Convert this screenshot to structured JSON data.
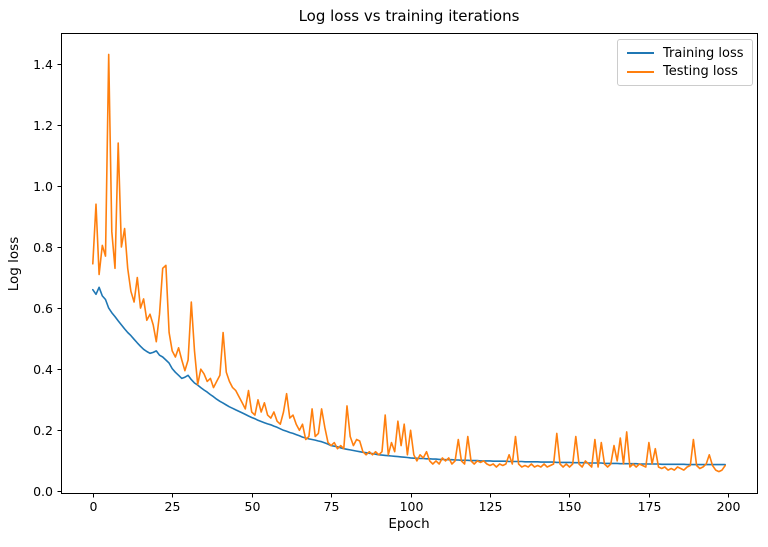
{
  "chart_data": {
    "type": "line",
    "title": "Log loss vs training iterations",
    "xlabel": "Epoch",
    "ylabel": "Log loss",
    "xlim": [
      -10,
      209
    ],
    "ylim": [
      -0.005,
      1.5
    ],
    "x_ticks": [
      0,
      25,
      50,
      75,
      100,
      125,
      150,
      175,
      200
    ],
    "y_ticks": [
      0.0,
      0.2,
      0.4,
      0.6,
      0.8,
      1.0,
      1.2,
      1.4
    ],
    "grid": false,
    "legend_position": "upper right",
    "x_start": 0,
    "x_step": 1,
    "series": [
      {
        "name": "Training loss",
        "color": "#1f77b4",
        "values": [
          0.66,
          0.645,
          0.668,
          0.64,
          0.628,
          0.6,
          0.585,
          0.572,
          0.558,
          0.545,
          0.532,
          0.52,
          0.51,
          0.498,
          0.486,
          0.475,
          0.465,
          0.458,
          0.452,
          0.455,
          0.46,
          0.446,
          0.44,
          0.43,
          0.42,
          0.402,
          0.39,
          0.38,
          0.37,
          0.374,
          0.38,
          0.366,
          0.355,
          0.348,
          0.34,
          0.332,
          0.325,
          0.317,
          0.31,
          0.302,
          0.295,
          0.289,
          0.283,
          0.277,
          0.272,
          0.267,
          0.262,
          0.257,
          0.252,
          0.247,
          0.242,
          0.238,
          0.233,
          0.229,
          0.225,
          0.221,
          0.218,
          0.214,
          0.21,
          0.205,
          0.2,
          0.197,
          0.193,
          0.19,
          0.186,
          0.182,
          0.178,
          0.175,
          0.172,
          0.17,
          0.168,
          0.165,
          0.163,
          0.159,
          0.155,
          0.15,
          0.148,
          0.146,
          0.143,
          0.14,
          0.138,
          0.136,
          0.134,
          0.132,
          0.13,
          0.128,
          0.127,
          0.125,
          0.124,
          0.122,
          0.12,
          0.119,
          0.118,
          0.117,
          0.116,
          0.115,
          0.114,
          0.113,
          0.112,
          0.111,
          0.11,
          0.109,
          0.109,
          0.108,
          0.108,
          0.107,
          0.107,
          0.106,
          0.106,
          0.105,
          0.105,
          0.104,
          0.104,
          0.104,
          0.103,
          0.103,
          0.102,
          0.102,
          0.102,
          0.101,
          0.101,
          0.101,
          0.1,
          0.1,
          0.1,
          0.1,
          0.099,
          0.099,
          0.099,
          0.099,
          0.099,
          0.098,
          0.098,
          0.098,
          0.098,
          0.098,
          0.097,
          0.097,
          0.097,
          0.097,
          0.097,
          0.096,
          0.096,
          0.096,
          0.096,
          0.096,
          0.095,
          0.095,
          0.095,
          0.095,
          0.095,
          0.094,
          0.094,
          0.094,
          0.094,
          0.094,
          0.093,
          0.093,
          0.093,
          0.093,
          0.093,
          0.092,
          0.092,
          0.092,
          0.092,
          0.092,
          0.091,
          0.091,
          0.091,
          0.091,
          0.091,
          0.091,
          0.09,
          0.09,
          0.09,
          0.09,
          0.09,
          0.09,
          0.09,
          0.089,
          0.089,
          0.089,
          0.089,
          0.089,
          0.089,
          0.089,
          0.089,
          0.088,
          0.088,
          0.088,
          0.088,
          0.088,
          0.088,
          0.088,
          0.088,
          0.088,
          0.088,
          0.088,
          0.088,
          0.088
        ]
      },
      {
        "name": "Testing loss",
        "color": "#ff7f0e",
        "values": [
          0.745,
          0.94,
          0.71,
          0.805,
          0.77,
          1.43,
          0.85,
          0.73,
          1.14,
          0.8,
          0.86,
          0.73,
          0.655,
          0.62,
          0.7,
          0.6,
          0.63,
          0.56,
          0.58,
          0.545,
          0.49,
          0.58,
          0.73,
          0.74,
          0.52,
          0.46,
          0.44,
          0.47,
          0.43,
          0.395,
          0.43,
          0.62,
          0.46,
          0.35,
          0.4,
          0.385,
          0.36,
          0.37,
          0.34,
          0.36,
          0.38,
          0.52,
          0.39,
          0.36,
          0.34,
          0.33,
          0.31,
          0.29,
          0.27,
          0.33,
          0.26,
          0.25,
          0.3,
          0.26,
          0.29,
          0.25,
          0.24,
          0.26,
          0.23,
          0.22,
          0.26,
          0.32,
          0.24,
          0.25,
          0.22,
          0.2,
          0.22,
          0.17,
          0.18,
          0.27,
          0.18,
          0.19,
          0.27,
          0.21,
          0.16,
          0.15,
          0.16,
          0.14,
          0.15,
          0.14,
          0.28,
          0.18,
          0.15,
          0.17,
          0.165,
          0.13,
          0.12,
          0.13,
          0.12,
          0.13,
          0.12,
          0.13,
          0.25,
          0.12,
          0.16,
          0.13,
          0.23,
          0.15,
          0.22,
          0.12,
          0.2,
          0.12,
          0.1,
          0.12,
          0.11,
          0.13,
          0.1,
          0.09,
          0.1,
          0.09,
          0.11,
          0.1,
          0.11,
          0.09,
          0.1,
          0.17,
          0.1,
          0.09,
          0.18,
          0.1,
          0.09,
          0.1,
          0.095,
          0.1,
          0.09,
          0.085,
          0.09,
          0.08,
          0.09,
          0.085,
          0.09,
          0.12,
          0.09,
          0.18,
          0.09,
          0.08,
          0.085,
          0.08,
          0.09,
          0.08,
          0.085,
          0.08,
          0.09,
          0.08,
          0.085,
          0.09,
          0.19,
          0.09,
          0.08,
          0.09,
          0.08,
          0.09,
          0.18,
          0.09,
          0.08,
          0.1,
          0.09,
          0.08,
          0.17,
          0.08,
          0.16,
          0.09,
          0.08,
          0.09,
          0.15,
          0.1,
          0.175,
          0.09,
          0.195,
          0.08,
          0.09,
          0.08,
          0.09,
          0.085,
          0.08,
          0.16,
          0.09,
          0.14,
          0.08,
          0.075,
          0.08,
          0.07,
          0.075,
          0.07,
          0.08,
          0.075,
          0.07,
          0.08,
          0.085,
          0.17,
          0.085,
          0.075,
          0.08,
          0.09,
          0.12,
          0.085,
          0.07,
          0.065,
          0.07,
          0.085
        ]
      }
    ]
  }
}
